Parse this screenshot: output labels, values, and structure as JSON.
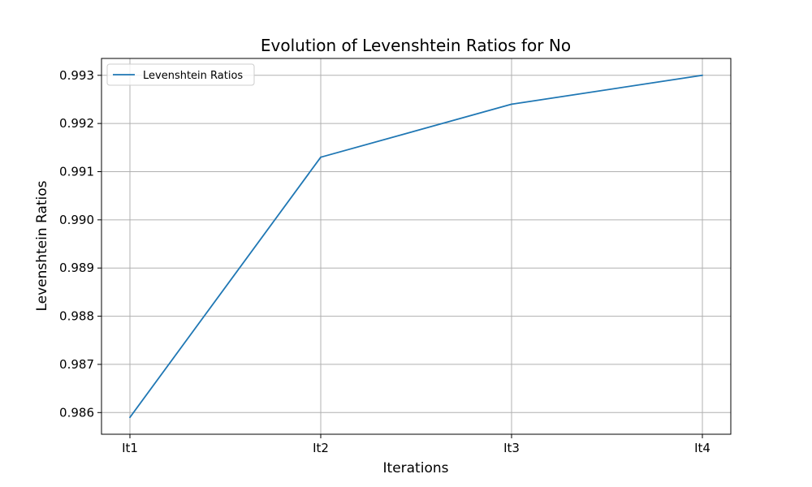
{
  "chart_data": {
    "type": "line",
    "title": "Evolution of Levenshtein Ratios for No",
    "xlabel": "Iterations",
    "ylabel": "Levenshtein Ratios",
    "categories": [
      "It1",
      "It2",
      "It3",
      "It4"
    ],
    "series": [
      {
        "name": "Levenshtein Ratios",
        "values": [
          0.9859,
          0.9913,
          0.9924,
          0.993
        ]
      }
    ],
    "yticks": [
      0.986,
      0.987,
      0.988,
      0.989,
      0.99,
      0.991,
      0.992,
      0.993
    ],
    "ytick_labels": [
      "0.986",
      "0.987",
      "0.988",
      "0.989",
      "0.990",
      "0.991",
      "0.992",
      "0.993"
    ],
    "ylim": [
      0.98555,
      0.99335
    ],
    "grid": true,
    "legend_position": "top-left",
    "colors": {
      "series": "#1f77b4",
      "grid": "#b0b0b0",
      "axes": "#000000"
    }
  }
}
